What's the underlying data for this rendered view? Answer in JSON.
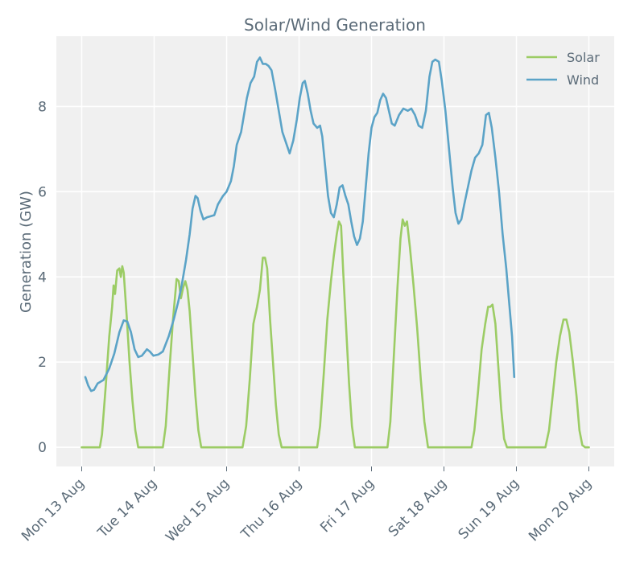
{
  "chart_data": {
    "type": "line",
    "title": "Solar/Wind Generation",
    "xlabel": "",
    "ylabel": "Generation (GW)",
    "xlim_days": [
      -0.35,
      7.35
    ],
    "ylim": [
      -0.45,
      9.65
    ],
    "yticks": [
      0,
      2,
      4,
      6,
      8
    ],
    "xticks": [
      {
        "day": 0,
        "label": "Mon 13 Aug"
      },
      {
        "day": 1,
        "label": "Tue 14 Aug"
      },
      {
        "day": 2,
        "label": "Wed 15 Aug"
      },
      {
        "day": 3,
        "label": "Thu 16 Aug"
      },
      {
        "day": 4,
        "label": "Fri 17 Aug"
      },
      {
        "day": 5,
        "label": "Sat 18 Aug"
      },
      {
        "day": 6,
        "label": "Sun 19 Aug"
      },
      {
        "day": 7,
        "label": "Mon 20 Aug"
      }
    ],
    "grid": true,
    "legend_position": "top-right",
    "series": [
      {
        "name": "Solar",
        "color": "#9ccc65",
        "points": [
          [
            0.0,
            0
          ],
          [
            0.25,
            0
          ],
          [
            0.28,
            0.3
          ],
          [
            0.33,
            1.4
          ],
          [
            0.38,
            2.6
          ],
          [
            0.42,
            3.3
          ],
          [
            0.44,
            3.8
          ],
          [
            0.46,
            3.6
          ],
          [
            0.49,
            4.15
          ],
          [
            0.52,
            4.2
          ],
          [
            0.54,
            4.0
          ],
          [
            0.56,
            4.25
          ],
          [
            0.58,
            4.1
          ],
          [
            0.62,
            3.1
          ],
          [
            0.66,
            2.0
          ],
          [
            0.7,
            1.1
          ],
          [
            0.74,
            0.4
          ],
          [
            0.78,
            0
          ],
          [
            1.0,
            0
          ],
          [
            1.12,
            0
          ],
          [
            1.16,
            0.5
          ],
          [
            1.21,
            1.8
          ],
          [
            1.26,
            3.0
          ],
          [
            1.31,
            3.95
          ],
          [
            1.34,
            3.9
          ],
          [
            1.37,
            3.5
          ],
          [
            1.4,
            3.75
          ],
          [
            1.43,
            3.9
          ],
          [
            1.46,
            3.7
          ],
          [
            1.49,
            3.2
          ],
          [
            1.53,
            2.2
          ],
          [
            1.57,
            1.2
          ],
          [
            1.61,
            0.4
          ],
          [
            1.65,
            0
          ],
          [
            2.0,
            0
          ],
          [
            2.22,
            0
          ],
          [
            2.27,
            0.5
          ],
          [
            2.32,
            1.6
          ],
          [
            2.37,
            2.9
          ],
          [
            2.42,
            3.3
          ],
          [
            2.46,
            3.7
          ],
          [
            2.5,
            4.45
          ],
          [
            2.53,
            4.45
          ],
          [
            2.56,
            4.2
          ],
          [
            2.6,
            3.0
          ],
          [
            2.64,
            2.0
          ],
          [
            2.68,
            1.0
          ],
          [
            2.72,
            0.3
          ],
          [
            2.76,
            0
          ],
          [
            3.0,
            0
          ],
          [
            3.25,
            0
          ],
          [
            3.29,
            0.5
          ],
          [
            3.34,
            1.7
          ],
          [
            3.39,
            3.0
          ],
          [
            3.44,
            3.9
          ],
          [
            3.48,
            4.5
          ],
          [
            3.52,
            5.0
          ],
          [
            3.55,
            5.3
          ],
          [
            3.58,
            5.2
          ],
          [
            3.61,
            4.1
          ],
          [
            3.65,
            2.8
          ],
          [
            3.69,
            1.5
          ],
          [
            3.73,
            0.5
          ],
          [
            3.77,
            0
          ],
          [
            4.0,
            0
          ],
          [
            4.22,
            0
          ],
          [
            4.26,
            0.6
          ],
          [
            4.31,
            2.2
          ],
          [
            4.36,
            3.8
          ],
          [
            4.4,
            4.9
          ],
          [
            4.43,
            5.35
          ],
          [
            4.46,
            5.2
          ],
          [
            4.49,
            5.3
          ],
          [
            4.53,
            4.7
          ],
          [
            4.58,
            3.8
          ],
          [
            4.63,
            2.8
          ],
          [
            4.68,
            1.6
          ],
          [
            4.73,
            0.6
          ],
          [
            4.78,
            0
          ],
          [
            5.0,
            0
          ],
          [
            5.38,
            0
          ],
          [
            5.42,
            0.4
          ],
          [
            5.47,
            1.3
          ],
          [
            5.52,
            2.3
          ],
          [
            5.57,
            2.9
          ],
          [
            5.61,
            3.3
          ],
          [
            5.64,
            3.3
          ],
          [
            5.67,
            3.35
          ],
          [
            5.71,
            2.9
          ],
          [
            5.75,
            1.9
          ],
          [
            5.79,
            0.9
          ],
          [
            5.83,
            0.2
          ],
          [
            5.87,
            0
          ],
          [
            6.0,
            0
          ],
          [
            6.4,
            0
          ],
          [
            6.45,
            0.4
          ],
          [
            6.5,
            1.2
          ],
          [
            6.55,
            2.0
          ],
          [
            6.6,
            2.6
          ],
          [
            6.65,
            3.0
          ],
          [
            6.69,
            3.0
          ],
          [
            6.73,
            2.7
          ],
          [
            6.78,
            2.0
          ],
          [
            6.83,
            1.2
          ],
          [
            6.87,
            0.4
          ],
          [
            6.91,
            0.05
          ],
          [
            6.95,
            0
          ],
          [
            7.0,
            0
          ]
        ]
      },
      {
        "name": "Wind",
        "color": "#5ba3c7",
        "points": [
          [
            0.05,
            1.65
          ],
          [
            0.09,
            1.45
          ],
          [
            0.13,
            1.32
          ],
          [
            0.17,
            1.35
          ],
          [
            0.22,
            1.5
          ],
          [
            0.3,
            1.58
          ],
          [
            0.38,
            1.85
          ],
          [
            0.45,
            2.2
          ],
          [
            0.52,
            2.7
          ],
          [
            0.58,
            2.98
          ],
          [
            0.63,
            2.95
          ],
          [
            0.68,
            2.7
          ],
          [
            0.73,
            2.3
          ],
          [
            0.78,
            2.12
          ],
          [
            0.83,
            2.15
          ],
          [
            0.9,
            2.3
          ],
          [
            0.94,
            2.25
          ],
          [
            0.99,
            2.15
          ],
          [
            1.06,
            2.18
          ],
          [
            1.12,
            2.25
          ],
          [
            1.2,
            2.6
          ],
          [
            1.27,
            3.0
          ],
          [
            1.33,
            3.4
          ],
          [
            1.38,
            3.8
          ],
          [
            1.44,
            4.4
          ],
          [
            1.49,
            5.0
          ],
          [
            1.53,
            5.6
          ],
          [
            1.57,
            5.9
          ],
          [
            1.6,
            5.85
          ],
          [
            1.64,
            5.55
          ],
          [
            1.68,
            5.35
          ],
          [
            1.73,
            5.4
          ],
          [
            1.77,
            5.42
          ],
          [
            1.83,
            5.45
          ],
          [
            1.88,
            5.7
          ],
          [
            1.95,
            5.9
          ],
          [
            2.0,
            6.0
          ],
          [
            2.06,
            6.25
          ],
          [
            2.1,
            6.6
          ],
          [
            2.14,
            7.1
          ],
          [
            2.2,
            7.4
          ],
          [
            2.24,
            7.8
          ],
          [
            2.28,
            8.2
          ],
          [
            2.33,
            8.55
          ],
          [
            2.38,
            8.7
          ],
          [
            2.42,
            9.05
          ],
          [
            2.46,
            9.15
          ],
          [
            2.5,
            9.0
          ],
          [
            2.54,
            9.0
          ],
          [
            2.58,
            8.95
          ],
          [
            2.62,
            8.85
          ],
          [
            2.67,
            8.4
          ],
          [
            2.72,
            7.9
          ],
          [
            2.77,
            7.4
          ],
          [
            2.82,
            7.15
          ],
          [
            2.87,
            6.9
          ],
          [
            2.92,
            7.2
          ],
          [
            2.97,
            7.7
          ],
          [
            3.01,
            8.2
          ],
          [
            3.05,
            8.55
          ],
          [
            3.08,
            8.6
          ],
          [
            3.12,
            8.3
          ],
          [
            3.16,
            7.9
          ],
          [
            3.2,
            7.6
          ],
          [
            3.25,
            7.5
          ],
          [
            3.29,
            7.55
          ],
          [
            3.32,
            7.3
          ],
          [
            3.36,
            6.6
          ],
          [
            3.4,
            5.9
          ],
          [
            3.44,
            5.5
          ],
          [
            3.48,
            5.4
          ],
          [
            3.52,
            5.7
          ],
          [
            3.56,
            6.1
          ],
          [
            3.6,
            6.15
          ],
          [
            3.64,
            5.9
          ],
          [
            3.68,
            5.7
          ],
          [
            3.72,
            5.3
          ],
          [
            3.76,
            4.95
          ],
          [
            3.8,
            4.75
          ],
          [
            3.84,
            4.9
          ],
          [
            3.88,
            5.3
          ],
          [
            3.92,
            6.1
          ],
          [
            3.96,
            6.9
          ],
          [
            4.0,
            7.5
          ],
          [
            4.04,
            7.75
          ],
          [
            4.08,
            7.85
          ],
          [
            4.12,
            8.15
          ],
          [
            4.16,
            8.3
          ],
          [
            4.2,
            8.2
          ],
          [
            4.24,
            7.9
          ],
          [
            4.28,
            7.6
          ],
          [
            4.32,
            7.55
          ],
          [
            4.38,
            7.8
          ],
          [
            4.44,
            7.95
          ],
          [
            4.5,
            7.9
          ],
          [
            4.55,
            7.95
          ],
          [
            4.6,
            7.8
          ],
          [
            4.65,
            7.55
          ],
          [
            4.7,
            7.5
          ],
          [
            4.75,
            7.9
          ],
          [
            4.8,
            8.7
          ],
          [
            4.84,
            9.05
          ],
          [
            4.88,
            9.1
          ],
          [
            4.93,
            9.05
          ],
          [
            4.97,
            8.6
          ],
          [
            5.02,
            7.9
          ],
          [
            5.07,
            7.0
          ],
          [
            5.12,
            6.1
          ],
          [
            5.16,
            5.5
          ],
          [
            5.2,
            5.25
          ],
          [
            5.24,
            5.35
          ],
          [
            5.28,
            5.7
          ],
          [
            5.33,
            6.1
          ],
          [
            5.38,
            6.5
          ],
          [
            5.43,
            6.8
          ],
          [
            5.48,
            6.9
          ],
          [
            5.53,
            7.1
          ],
          [
            5.58,
            7.8
          ],
          [
            5.62,
            7.85
          ],
          [
            5.66,
            7.5
          ],
          [
            5.71,
            6.8
          ],
          [
            5.76,
            6.0
          ],
          [
            5.81,
            5.0
          ],
          [
            5.86,
            4.2
          ],
          [
            5.9,
            3.4
          ],
          [
            5.94,
            2.6
          ],
          [
            5.97,
            1.65
          ]
        ]
      }
    ]
  }
}
